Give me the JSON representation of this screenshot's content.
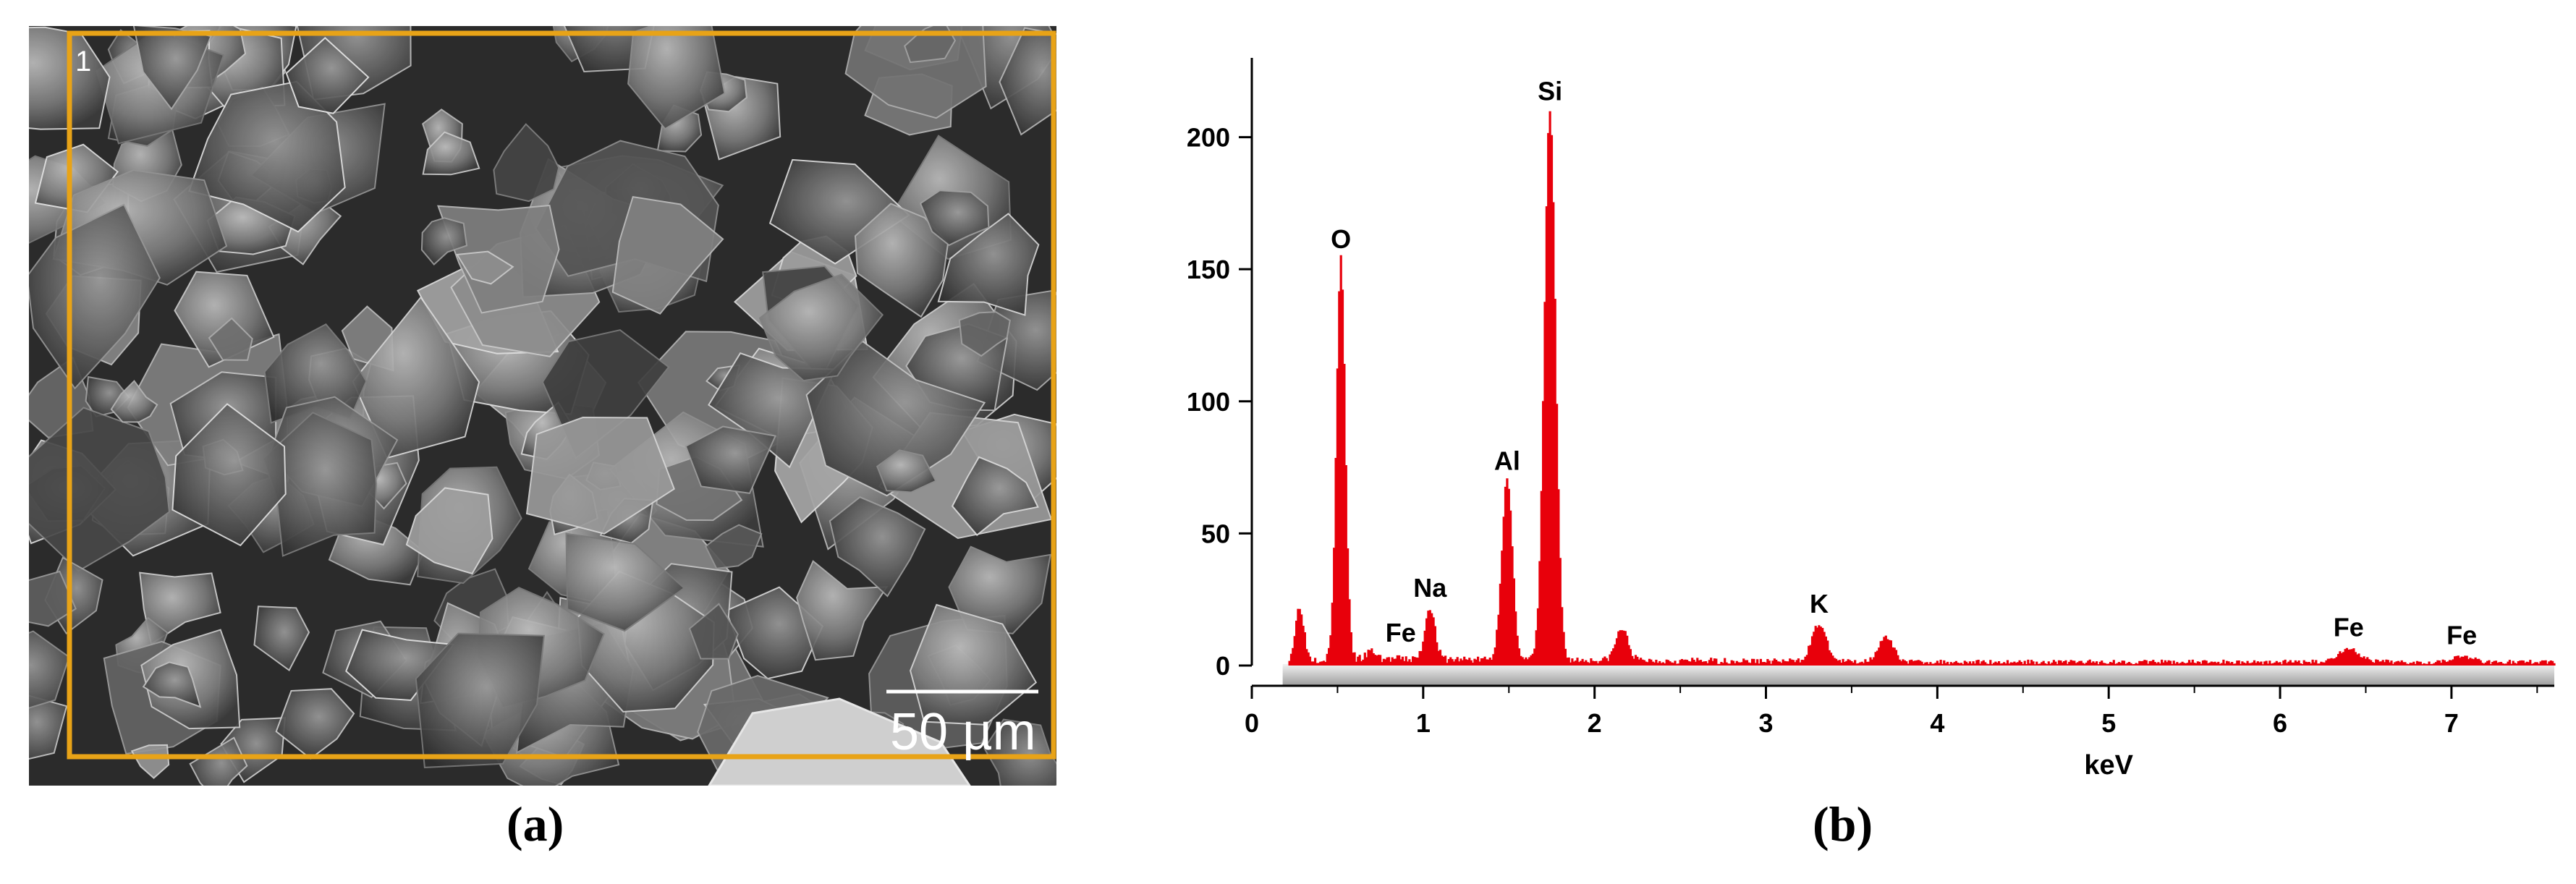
{
  "panels": {
    "a": {
      "caption": "(a)",
      "roi_label": "1",
      "scale_bar_text": "50 µm",
      "frame_color": "#e8a317"
    },
    "b": {
      "caption": "(b)"
    }
  },
  "chart_data": {
    "type": "line",
    "title": "",
    "xlabel": "keV",
    "ylabel": "",
    "xlim": [
      0,
      7.6
    ],
    "ylim": [
      0,
      230
    ],
    "x_ticks": [
      0,
      1,
      2,
      3,
      4,
      5,
      6,
      7
    ],
    "y_ticks": [
      0,
      50,
      100,
      150,
      200
    ],
    "grid": false,
    "series_color": "#e8000b",
    "peaks": [
      {
        "element": "O",
        "energy": 0.52,
        "counts": 152
      },
      {
        "element": "Fe",
        "energy": 0.7,
        "counts": 3
      },
      {
        "element": "Na",
        "energy": 1.04,
        "counts": 20
      },
      {
        "element": "Al",
        "energy": 1.49,
        "counts": 68
      },
      {
        "element": "Si",
        "energy": 1.74,
        "counts": 208
      },
      {
        "element": "K",
        "energy": 3.31,
        "counts": 14
      },
      {
        "element": "Fe",
        "energy": 6.4,
        "counts": 5
      },
      {
        "element": "Fe",
        "energy": 7.06,
        "counts": 2
      }
    ],
    "minor_peaks": [
      {
        "energy": 0.28,
        "counts": 20
      },
      {
        "energy": 2.16,
        "counts": 12
      },
      {
        "energy": 3.7,
        "counts": 9
      }
    ]
  }
}
